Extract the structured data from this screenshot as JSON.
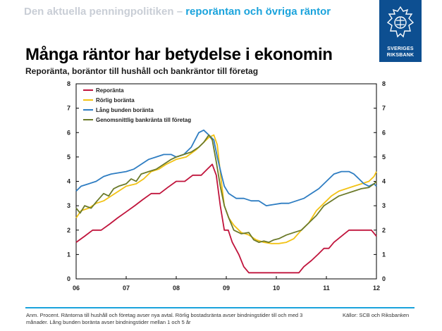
{
  "header": {
    "section": "Den aktuella penningpolitiken",
    "separator": " – ",
    "topic": "reporäntan och övriga räntor"
  },
  "logo": {
    "line1": "SVERIGES",
    "line2": "RIKSBANK",
    "icon": "riksbank-crest-icon"
  },
  "title": "Många räntor har betydelse i ekonomin",
  "subtitle": "Reporänta, boräntor till hushåll och bankräntor till företag",
  "footer": {
    "note": "Anm. Procent. Räntorna till hushåll och företag avser nya avtal. Rörlig bostadsränta avser bindningstider till och med 3 månader. Lång bunden boränta avser bindningstider mellan 1 och 5 år",
    "source": "Källor: SCB och Riksbanken"
  },
  "chart_data": {
    "type": "line",
    "title": "Många räntor har betydelse i ekonomin",
    "subtitle": "Reporänta, boräntor till hushåll och bankräntor till företag",
    "xlabel": "",
    "ylabel": "",
    "xlim": [
      2006,
      2012
    ],
    "ylim": [
      0,
      8
    ],
    "x_ticks": [
      {
        "value": 2006,
        "label": "06"
      },
      {
        "value": 2007,
        "label": "07"
      },
      {
        "value": 2008,
        "label": "08"
      },
      {
        "value": 2009,
        "label": "09"
      },
      {
        "value": 2010,
        "label": "10"
      },
      {
        "value": 2011,
        "label": "11"
      },
      {
        "value": 2012,
        "label": "12"
      }
    ],
    "y_ticks": [
      0,
      1,
      2,
      3,
      4,
      5,
      6,
      7,
      8
    ],
    "dual_y_axis": true,
    "grid": false,
    "legend_position": "top-left",
    "series": [
      {
        "name": "Reporänta",
        "color": "#c0143c",
        "points": [
          [
            2006.0,
            1.5
          ],
          [
            2006.17,
            1.75
          ],
          [
            2006.33,
            2.0
          ],
          [
            2006.5,
            2.0
          ],
          [
            2006.67,
            2.25
          ],
          [
            2006.83,
            2.5
          ],
          [
            2007.0,
            2.75
          ],
          [
            2007.17,
            3.0
          ],
          [
            2007.33,
            3.25
          ],
          [
            2007.5,
            3.5
          ],
          [
            2007.67,
            3.5
          ],
          [
            2007.83,
            3.75
          ],
          [
            2008.0,
            4.0
          ],
          [
            2008.17,
            4.0
          ],
          [
            2008.33,
            4.25
          ],
          [
            2008.5,
            4.25
          ],
          [
            2008.62,
            4.5
          ],
          [
            2008.72,
            4.7
          ],
          [
            2008.8,
            4.25
          ],
          [
            2008.88,
            3.0
          ],
          [
            2008.96,
            2.0
          ],
          [
            2009.04,
            2.0
          ],
          [
            2009.12,
            1.5
          ],
          [
            2009.25,
            1.0
          ],
          [
            2009.35,
            0.5
          ],
          [
            2009.45,
            0.25
          ],
          [
            2009.6,
            0.25
          ],
          [
            2009.8,
            0.25
          ],
          [
            2010.0,
            0.25
          ],
          [
            2010.2,
            0.25
          ],
          [
            2010.45,
            0.25
          ],
          [
            2010.55,
            0.5
          ],
          [
            2010.7,
            0.75
          ],
          [
            2010.83,
            1.0
          ],
          [
            2010.95,
            1.25
          ],
          [
            2011.05,
            1.25
          ],
          [
            2011.15,
            1.5
          ],
          [
            2011.3,
            1.75
          ],
          [
            2011.45,
            2.0
          ],
          [
            2011.7,
            2.0
          ],
          [
            2011.9,
            2.0
          ],
          [
            2012.0,
            1.75
          ]
        ]
      },
      {
        "name": "Rörlig boränta",
        "color": "#f2c214",
        "points": [
          [
            2006.0,
            2.5
          ],
          [
            2006.1,
            2.8
          ],
          [
            2006.25,
            2.9
          ],
          [
            2006.4,
            3.1
          ],
          [
            2006.55,
            3.2
          ],
          [
            2006.7,
            3.4
          ],
          [
            2006.85,
            3.6
          ],
          [
            2007.0,
            3.8
          ],
          [
            2007.2,
            3.9
          ],
          [
            2007.35,
            4.1
          ],
          [
            2007.5,
            4.4
          ],
          [
            2007.65,
            4.5
          ],
          [
            2007.8,
            4.7
          ],
          [
            2008.0,
            4.9
          ],
          [
            2008.2,
            5.0
          ],
          [
            2008.4,
            5.3
          ],
          [
            2008.55,
            5.6
          ],
          [
            2008.65,
            5.8
          ],
          [
            2008.75,
            5.9
          ],
          [
            2008.82,
            5.5
          ],
          [
            2008.9,
            4.0
          ],
          [
            2008.96,
            3.0
          ],
          [
            2009.05,
            2.5
          ],
          [
            2009.15,
            2.2
          ],
          [
            2009.3,
            1.9
          ],
          [
            2009.45,
            1.8
          ],
          [
            2009.6,
            1.6
          ],
          [
            2009.75,
            1.5
          ],
          [
            2009.9,
            1.45
          ],
          [
            2010.05,
            1.45
          ],
          [
            2010.2,
            1.5
          ],
          [
            2010.35,
            1.65
          ],
          [
            2010.5,
            2.0
          ],
          [
            2010.65,
            2.3
          ],
          [
            2010.8,
            2.8
          ],
          [
            2010.95,
            3.1
          ],
          [
            2011.1,
            3.4
          ],
          [
            2011.25,
            3.6
          ],
          [
            2011.4,
            3.7
          ],
          [
            2011.55,
            3.8
          ],
          [
            2011.7,
            3.9
          ],
          [
            2011.85,
            4.0
          ],
          [
            2011.95,
            4.2
          ],
          [
            2012.0,
            4.4
          ]
        ]
      },
      {
        "name": "Lång bunden boränta",
        "color": "#2e7dc2",
        "points": [
          [
            2006.0,
            3.6
          ],
          [
            2006.1,
            3.8
          ],
          [
            2006.25,
            3.9
          ],
          [
            2006.4,
            4.0
          ],
          [
            2006.55,
            4.2
          ],
          [
            2006.7,
            4.3
          ],
          [
            2006.85,
            4.35
          ],
          [
            2007.0,
            4.4
          ],
          [
            2007.15,
            4.5
          ],
          [
            2007.3,
            4.7
          ],
          [
            2007.45,
            4.9
          ],
          [
            2007.6,
            5.0
          ],
          [
            2007.75,
            5.1
          ],
          [
            2007.9,
            5.1
          ],
          [
            2008.0,
            5.0
          ],
          [
            2008.15,
            5.1
          ],
          [
            2008.3,
            5.4
          ],
          [
            2008.45,
            6.0
          ],
          [
            2008.55,
            6.1
          ],
          [
            2008.65,
            5.9
          ],
          [
            2008.75,
            5.7
          ],
          [
            2008.82,
            5.0
          ],
          [
            2008.9,
            4.3
          ],
          [
            2008.96,
            3.8
          ],
          [
            2009.05,
            3.5
          ],
          [
            2009.2,
            3.3
          ],
          [
            2009.35,
            3.3
          ],
          [
            2009.5,
            3.2
          ],
          [
            2009.65,
            3.2
          ],
          [
            2009.8,
            3.0
          ],
          [
            2009.95,
            3.05
          ],
          [
            2010.1,
            3.1
          ],
          [
            2010.25,
            3.1
          ],
          [
            2010.4,
            3.2
          ],
          [
            2010.55,
            3.3
          ],
          [
            2010.7,
            3.5
          ],
          [
            2010.85,
            3.7
          ],
          [
            2011.0,
            4.0
          ],
          [
            2011.15,
            4.3
          ],
          [
            2011.3,
            4.4
          ],
          [
            2011.45,
            4.4
          ],
          [
            2011.55,
            4.3
          ],
          [
            2011.65,
            4.1
          ],
          [
            2011.75,
            3.9
          ],
          [
            2011.85,
            3.8
          ],
          [
            2011.95,
            3.9
          ],
          [
            2012.0,
            3.8
          ]
        ]
      },
      {
        "name": "Genomsnittlig bankränta till företag",
        "color": "#6b7a2a",
        "points": [
          [
            2006.0,
            2.9
          ],
          [
            2006.08,
            2.7
          ],
          [
            2006.17,
            3.0
          ],
          [
            2006.3,
            2.9
          ],
          [
            2006.42,
            3.2
          ],
          [
            2006.55,
            3.5
          ],
          [
            2006.65,
            3.4
          ],
          [
            2006.75,
            3.7
          ],
          [
            2006.85,
            3.8
          ],
          [
            2007.0,
            3.9
          ],
          [
            2007.1,
            4.1
          ],
          [
            2007.2,
            4.0
          ],
          [
            2007.3,
            4.3
          ],
          [
            2007.45,
            4.4
          ],
          [
            2007.6,
            4.5
          ],
          [
            2007.75,
            4.7
          ],
          [
            2007.9,
            4.9
          ],
          [
            2008.0,
            5.0
          ],
          [
            2008.15,
            5.1
          ],
          [
            2008.3,
            5.2
          ],
          [
            2008.45,
            5.4
          ],
          [
            2008.55,
            5.6
          ],
          [
            2008.65,
            5.9
          ],
          [
            2008.72,
            5.7
          ],
          [
            2008.8,
            4.8
          ],
          [
            2008.88,
            3.8
          ],
          [
            2008.96,
            3.0
          ],
          [
            2009.05,
            2.5
          ],
          [
            2009.15,
            2.0
          ],
          [
            2009.3,
            1.85
          ],
          [
            2009.45,
            1.9
          ],
          [
            2009.55,
            1.6
          ],
          [
            2009.65,
            1.5
          ],
          [
            2009.75,
            1.55
          ],
          [
            2009.85,
            1.5
          ],
          [
            2009.95,
            1.6
          ],
          [
            2010.05,
            1.65
          ],
          [
            2010.2,
            1.8
          ],
          [
            2010.35,
            1.9
          ],
          [
            2010.5,
            2.0
          ],
          [
            2010.65,
            2.3
          ],
          [
            2010.8,
            2.6
          ],
          [
            2010.95,
            3.0
          ],
          [
            2011.1,
            3.2
          ],
          [
            2011.25,
            3.4
          ],
          [
            2011.4,
            3.5
          ],
          [
            2011.55,
            3.6
          ],
          [
            2011.7,
            3.7
          ],
          [
            2011.85,
            3.75
          ],
          [
            2011.95,
            3.9
          ],
          [
            2012.0,
            4.0
          ]
        ]
      }
    ]
  }
}
